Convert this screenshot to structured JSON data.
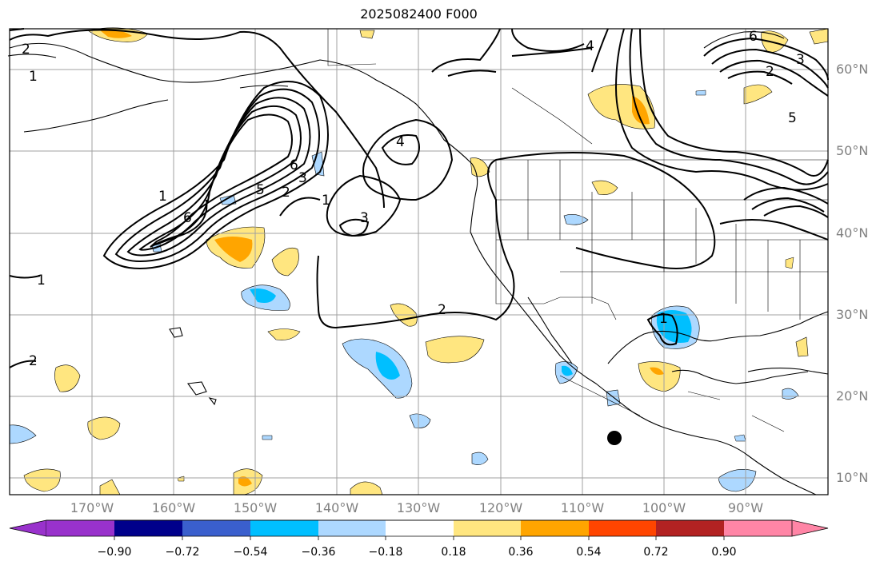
{
  "title": "2025082400 F000",
  "lat_labels": [
    "60°N",
    "50°N",
    "40°N",
    "30°N",
    "20°N",
    "10°N"
  ],
  "lon_labels": [
    "170°W",
    "160°W",
    "150°W",
    "140°W",
    "130°W",
    "120°W",
    "110°W",
    "100°W",
    "90°W"
  ],
  "contour_labels": [
    "2",
    "1",
    "4",
    "6",
    "3",
    "5",
    "2",
    "6",
    "1",
    "1",
    "2",
    "3",
    "4",
    "3",
    "6",
    "5",
    "2",
    "1",
    "1",
    "2"
  ],
  "colorbar": {
    "tick_labels": [
      "−0.90",
      "−0.72",
      "−0.54",
      "−0.36",
      "−0.18",
      "0.18",
      "0.36",
      "0.54",
      "0.72",
      "0.90"
    ],
    "colors": [
      "#9932cc",
      "#00008b",
      "#3a5fcd",
      "#00bfff",
      "#add8ff",
      "#ffffff",
      "#ffe680",
      "#ffa500",
      "#ff4500",
      "#b22222",
      "#ff85a6"
    ]
  },
  "marker": "storm-position"
}
